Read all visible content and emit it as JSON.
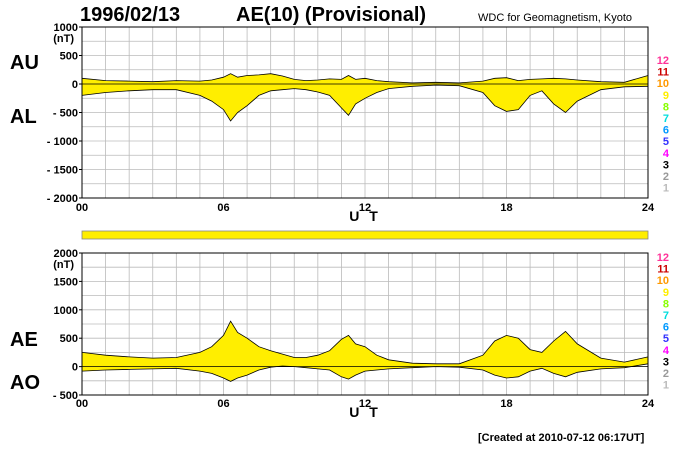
{
  "header": {
    "date": "1996/02/13",
    "title": "AE(10) (Provisional)",
    "source": "WDC for Geomagnetism, Kyoto"
  },
  "footer": {
    "created": "[Created at 2010-07-12 06:17UT]"
  },
  "colors": {
    "fill": "#ffee00",
    "line": "#000000",
    "grid": "#bbbbbb",
    "station_colors": [
      "#bbbbbb",
      "#999999",
      "#000000",
      "#ff00ff",
      "#3333ff",
      "#0099ff",
      "#00dddd",
      "#88ff00",
      "#ffee00",
      "#ff9900",
      "#cc0000",
      "#ff3399"
    ]
  },
  "station_labels": [
    "1",
    "2",
    "3",
    "4",
    "5",
    "6",
    "7",
    "8",
    "9",
    "10",
    "11",
    "12"
  ],
  "coverage_bar": {
    "coverage": 1.0
  },
  "chart_data": [
    {
      "type": "area",
      "id": "au_al",
      "labels": {
        "upper": "AU",
        "lower": "AL"
      },
      "ylabel": "(nT)",
      "xlabel": "U T",
      "ylim": [
        -2000,
        1000
      ],
      "yticks": [
        1000,
        500,
        0,
        -500,
        -1000,
        -1500,
        -2000
      ],
      "ytick_labels": [
        "1000",
        "500",
        "0",
        "- 500",
        "- 1000",
        "- 1500",
        "- 2000"
      ],
      "xlim": [
        0,
        24
      ],
      "xticks": [
        0,
        6,
        12,
        18,
        24
      ],
      "xtick_labels": [
        "00",
        "06",
        "12",
        "18",
        "24"
      ],
      "series": [
        {
          "x": [
            0,
            1,
            2,
            3,
            4,
            5,
            5.5,
            6,
            6.3,
            6.6,
            7,
            7.5,
            8,
            8.5,
            9,
            9.5,
            10,
            10.5,
            11,
            11.3,
            11.6,
            12,
            12.5,
            13,
            14,
            15,
            16,
            17,
            17.5,
            18,
            18.5,
            19,
            19.5,
            20,
            20.5,
            21,
            22,
            23,
            24
          ],
          "values": [
            100,
            60,
            50,
            40,
            60,
            50,
            70,
            120,
            180,
            120,
            150,
            160,
            180,
            140,
            80,
            60,
            70,
            90,
            80,
            150,
            80,
            100,
            60,
            40,
            20,
            30,
            20,
            50,
            100,
            110,
            60,
            80,
            90,
            100,
            90,
            70,
            40,
            30,
            150
          ]
        },
        {
          "x": [
            0,
            1,
            2,
            3,
            4,
            5,
            5.5,
            6,
            6.3,
            6.6,
            7,
            7.5,
            8,
            8.5,
            9,
            9.5,
            10,
            10.5,
            11,
            11.3,
            11.6,
            12,
            12.5,
            13,
            14,
            15,
            16,
            17,
            17.5,
            18,
            18.5,
            19,
            19.5,
            20,
            20.5,
            21,
            22,
            23,
            24
          ],
          "values": [
            -200,
            -150,
            -120,
            -100,
            -100,
            -200,
            -300,
            -450,
            -650,
            -500,
            -380,
            -200,
            -120,
            -100,
            -80,
            -100,
            -140,
            -200,
            -420,
            -550,
            -350,
            -250,
            -150,
            -80,
            -40,
            -20,
            -30,
            -150,
            -380,
            -480,
            -450,
            -200,
            -120,
            -350,
            -500,
            -300,
            -100,
            -50,
            -40
          ]
        }
      ]
    },
    {
      "type": "area",
      "id": "ae_ao",
      "labels": {
        "upper": "AE",
        "lower": "AO"
      },
      "ylabel": "(nT)",
      "xlabel": "U T",
      "ylim": [
        -500,
        2000
      ],
      "yticks": [
        2000,
        1500,
        1000,
        500,
        0,
        -500
      ],
      "ytick_labels": [
        "2000",
        "1500",
        "1000",
        "500",
        "0",
        "- 500"
      ],
      "xlim": [
        0,
        24
      ],
      "xticks": [
        0,
        6,
        12,
        18,
        24
      ],
      "xtick_labels": [
        "00",
        "06",
        "12",
        "18",
        "24"
      ],
      "series": [
        {
          "x": [
            0,
            1,
            2,
            3,
            4,
            5,
            5.5,
            6,
            6.3,
            6.6,
            7,
            7.5,
            8,
            8.5,
            9,
            9.5,
            10,
            10.5,
            11,
            11.3,
            11.6,
            12,
            12.5,
            13,
            14,
            15,
            16,
            17,
            17.5,
            18,
            18.5,
            19,
            19.5,
            20,
            20.5,
            21,
            22,
            23,
            24
          ],
          "values": [
            250,
            200,
            170,
            150,
            160,
            250,
            350,
            550,
            800,
            600,
            500,
            350,
            280,
            220,
            160,
            160,
            200,
            280,
            480,
            550,
            400,
            350,
            200,
            120,
            60,
            50,
            50,
            200,
            450,
            550,
            500,
            300,
            250,
            450,
            620,
            400,
            150,
            80,
            170
          ]
        },
        {
          "x": [
            0,
            1,
            2,
            3,
            4,
            5,
            5.5,
            6,
            6.3,
            6.6,
            7,
            7.5,
            8,
            8.5,
            9,
            9.5,
            10,
            10.5,
            11,
            11.3,
            11.6,
            12,
            12.5,
            13,
            14,
            15,
            16,
            17,
            17.5,
            18,
            18.5,
            19,
            19.5,
            20,
            20.5,
            21,
            22,
            23,
            24
          ],
          "values": [
            -80,
            -60,
            -50,
            -40,
            -30,
            -80,
            -120,
            -200,
            -260,
            -200,
            -150,
            -60,
            -10,
            10,
            0,
            -20,
            -40,
            -60,
            -180,
            -220,
            -150,
            -80,
            -60,
            -40,
            -20,
            0,
            -10,
            -60,
            -150,
            -200,
            -180,
            -80,
            -30,
            -120,
            -180,
            -100,
            -40,
            -20,
            50
          ]
        }
      ]
    }
  ]
}
